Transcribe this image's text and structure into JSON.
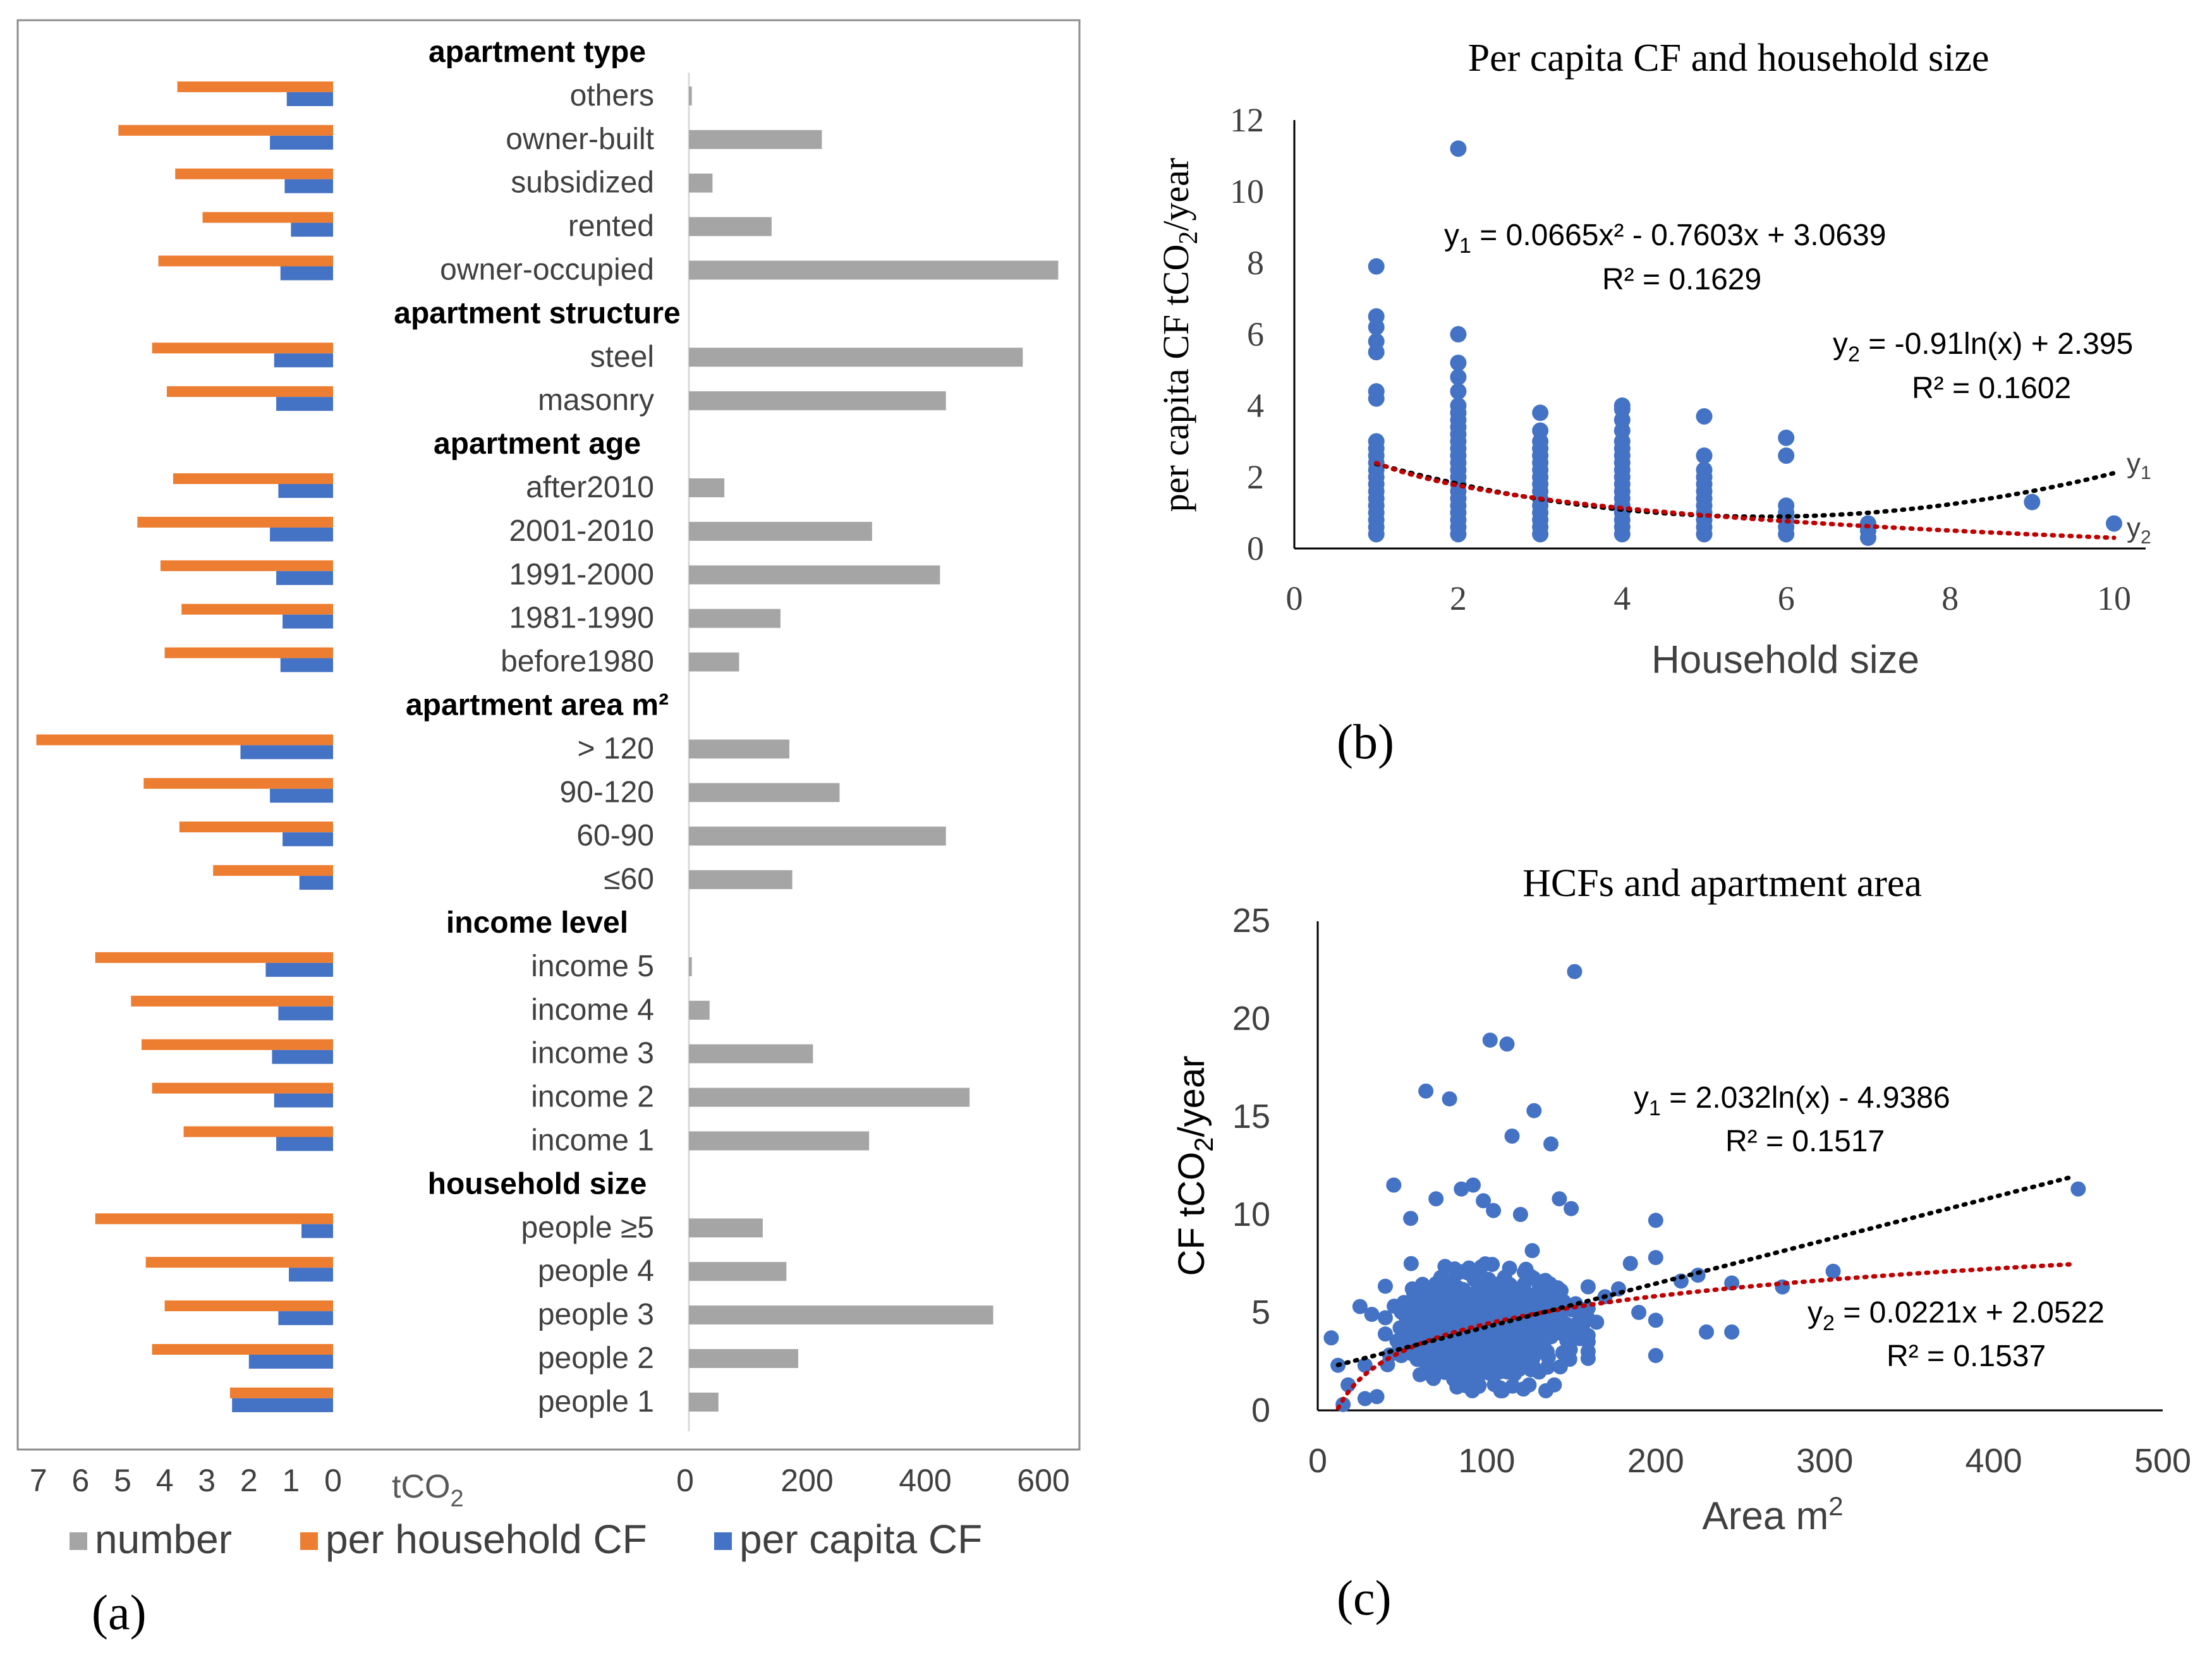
{
  "chart_data": [
    {
      "id": "a",
      "type": "bar",
      "panel_label": "(a)",
      "left_axis": {
        "unit_label": "tCO",
        "unit_sub": "2",
        "ticks": [
          "7",
          "6",
          "5",
          "4",
          "3",
          "2",
          "1",
          "0"
        ],
        "range": [
          0,
          7
        ]
      },
      "right_axis": {
        "ticks": [
          "0",
          "200",
          "400",
          "600"
        ],
        "range": [
          0,
          600
        ]
      },
      "legend": [
        {
          "name": "number",
          "color": "#a5a5a5"
        },
        {
          "name": "per household CF",
          "color": "#ed7d31"
        },
        {
          "name": "per capita CF",
          "color": "#4472c4"
        }
      ],
      "groups": [
        {
          "heading": "apartment type",
          "rows": [
            {
              "label": "others",
              "household": 3.7,
              "capita": 1.1,
              "number": 5
            },
            {
              "label": "owner-built",
              "household": 5.1,
              "capita": 1.5,
              "number": 225
            },
            {
              "label": "subsidized",
              "household": 3.75,
              "capita": 1.15,
              "number": 40
            },
            {
              "label": "rented",
              "household": 3.1,
              "capita": 1.0,
              "number": 140
            },
            {
              "label": "owner-occupied",
              "household": 4.15,
              "capita": 1.25,
              "number": 625
            }
          ]
        },
        {
          "heading": "apartment structure",
          "rows": [
            {
              "label": "steel",
              "household": 4.3,
              "capita": 1.4,
              "number": 565
            },
            {
              "label": "masonry",
              "household": 3.95,
              "capita": 1.35,
              "number": 435
            }
          ]
        },
        {
          "heading": "apartment age",
          "rows": [
            {
              "label": "after2010",
              "household": 3.8,
              "capita": 1.3,
              "number": 60
            },
            {
              "label": "2001-2010",
              "household": 4.65,
              "capita": 1.5,
              "number": 310
            },
            {
              "label": "1991-2000",
              "household": 4.1,
              "capita": 1.35,
              "number": 425
            },
            {
              "label": "1981-1990",
              "household": 3.6,
              "capita": 1.2,
              "number": 155
            },
            {
              "label": "before1980",
              "household": 4.0,
              "capita": 1.25,
              "number": 85
            }
          ]
        },
        {
          "heading": "apartment area m²",
          "rows": [
            {
              "label": "> 120",
              "household": 7.05,
              "capita": 2.2,
              "number": 170
            },
            {
              "label": "90-120",
              "household": 4.5,
              "capita": 1.5,
              "number": 255
            },
            {
              "label": "60-90",
              "household": 3.65,
              "capita": 1.2,
              "number": 435
            },
            {
              "label": "≤60",
              "household": 2.85,
              "capita": 0.8,
              "number": 175
            }
          ]
        },
        {
          "heading": "income level",
          "rows": [
            {
              "label": "income 5",
              "household": 5.65,
              "capita": 1.6,
              "number": 5
            },
            {
              "label": "income 4",
              "household": 4.8,
              "capita": 1.3,
              "number": 35
            },
            {
              "label": "income 3",
              "household": 4.55,
              "capita": 1.45,
              "number": 210
            },
            {
              "label": "income 2",
              "household": 4.3,
              "capita": 1.4,
              "number": 475
            },
            {
              "label": "income 1",
              "household": 3.55,
              "capita": 1.35,
              "number": 305
            }
          ]
        },
        {
          "heading": "household size",
          "rows": [
            {
              "label": "people ≥5",
              "household": 5.65,
              "capita": 0.75,
              "number": 125
            },
            {
              "label": "people 4",
              "household": 4.45,
              "capita": 1.05,
              "number": 165
            },
            {
              "label": "people 3",
              "household": 4.0,
              "capita": 1.3,
              "number": 515
            },
            {
              "label": "people 2",
              "household": 4.3,
              "capita": 2.0,
              "number": 185
            },
            {
              "label": "people 1",
              "household": 2.45,
              "capita": 2.4,
              "number": 50
            }
          ]
        }
      ]
    },
    {
      "id": "b",
      "type": "scatter",
      "panel_label": "(b)",
      "title": "Per capita CF and household size",
      "xlabel": "Household size",
      "ylabel_main": "per capita CF tCO",
      "ylabel_sub": "2",
      "ylabel_end": "/year",
      "xlim": [
        0,
        10
      ],
      "ylim": [
        0,
        12
      ],
      "xticks": [
        "0",
        "2",
        "4",
        "6",
        "8",
        "10"
      ],
      "yticks": [
        "0",
        "2",
        "4",
        "6",
        "8",
        "10",
        "12"
      ],
      "equations": [
        {
          "main": "y",
          "sub": "1",
          "rest": " = 0.0665x² - 0.7603x + 3.0639",
          "r2": "R² = 0.1629"
        },
        {
          "main": "y",
          "sub": "2",
          "rest": " = -0.91ln(x) + 2.395",
          "r2": "R² = 0.1602"
        }
      ],
      "curve_tags": [
        {
          "main": "y",
          "sub": "1"
        },
        {
          "main": "y",
          "sub": "2"
        }
      ],
      "fits": [
        {
          "name": "y1",
          "kind": "poly2",
          "a": 0.0665,
          "b": -0.7603,
          "c": 3.0639,
          "color": "#000000",
          "x_from": 1,
          "x_to": 10
        },
        {
          "name": "y2",
          "kind": "log",
          "a": -0.91,
          "b": 2.395,
          "color": "#c00000",
          "x_from": 1,
          "x_to": 10
        }
      ],
      "columns": [
        {
          "x": 1,
          "values": [
            0.4,
            0.6,
            0.8,
            1.0,
            1.2,
            1.4,
            1.6,
            1.8,
            2.0,
            2.2,
            2.4,
            2.6,
            2.8,
            3.0,
            4.2,
            4.4,
            5.5,
            5.8,
            6.2,
            6.5,
            7.9
          ]
        },
        {
          "x": 2,
          "values": [
            0.4,
            0.6,
            0.8,
            1.0,
            1.2,
            1.4,
            1.6,
            1.8,
            2.0,
            2.2,
            2.4,
            2.6,
            2.8,
            3.0,
            3.2,
            3.4,
            3.6,
            3.8,
            4.0,
            4.4,
            4.8,
            5.2,
            6.0,
            11.2
          ]
        },
        {
          "x": 3,
          "values": [
            0.4,
            0.6,
            0.8,
            1.0,
            1.2,
            1.4,
            1.6,
            1.8,
            2.0,
            2.2,
            2.4,
            2.6,
            2.8,
            3.0,
            3.3,
            3.8
          ]
        },
        {
          "x": 4,
          "values": [
            0.4,
            0.6,
            0.8,
            1.0,
            1.2,
            1.4,
            1.6,
            1.8,
            2.0,
            2.2,
            2.4,
            2.6,
            2.8,
            3.0,
            3.3,
            3.6,
            3.9,
            4.0
          ]
        },
        {
          "x": 5,
          "values": [
            0.4,
            0.6,
            0.8,
            1.0,
            1.2,
            1.4,
            1.6,
            1.8,
            2.0,
            2.2,
            2.6,
            3.7
          ]
        },
        {
          "x": 6,
          "values": [
            0.4,
            0.6,
            0.8,
            1.0,
            1.2,
            2.6,
            3.1
          ]
        },
        {
          "x": 7,
          "values": [
            0.3,
            0.5,
            0.7
          ]
        },
        {
          "x": 9,
          "values": [
            1.3
          ]
        },
        {
          "x": 10,
          "values": [
            0.7
          ]
        }
      ]
    },
    {
      "id": "c",
      "type": "scatter",
      "panel_label": "(c)",
      "title": "HCFs and apartment area",
      "xlabel_main": "Area m",
      "xlabel_sup": "2",
      "ylabel_main": "CF  tCO",
      "ylabel_sub": "2",
      "ylabel_end": "/year",
      "xlim": [
        0,
        500
      ],
      "ylim": [
        0,
        25
      ],
      "xticks": [
        "0",
        "100",
        "200",
        "300",
        "400",
        "500"
      ],
      "yticks": [
        "0",
        "5",
        "10",
        "15",
        "20",
        "25"
      ],
      "equations": [
        {
          "main": "y",
          "sub": "1",
          "rest": " = 2.032ln(x) - 4.9386",
          "r2": "R² = 0.1517"
        },
        {
          "main": "y",
          "sub": "2",
          "rest": " = 0.0221x + 2.0522",
          "r2": "R² = 0.1537"
        }
      ],
      "fits": [
        {
          "name": "y1",
          "kind": "log",
          "a": 2.032,
          "b": -4.9386,
          "color": "#c00000",
          "x_from": 12,
          "x_to": 450
        },
        {
          "name": "y2",
          "kind": "linear",
          "a": 0.0221,
          "b": 2.0522,
          "color": "#000000",
          "x_from": 12,
          "x_to": 450
        }
      ],
      "outliers": [
        [
          152,
          22.4
        ],
        [
          102,
          18.9
        ],
        [
          112,
          18.7
        ],
        [
          64,
          16.3
        ],
        [
          78,
          15.9
        ],
        [
          128,
          15.3
        ],
        [
          115,
          14.0
        ],
        [
          138,
          13.6
        ],
        [
          45,
          11.5
        ],
        [
          92,
          11.5
        ],
        [
          85,
          11.3
        ],
        [
          70,
          10.8
        ],
        [
          98,
          10.7
        ],
        [
          104,
          10.2
        ],
        [
          55,
          9.8
        ],
        [
          120,
          10.0
        ],
        [
          200,
          9.7
        ],
        [
          150,
          10.3
        ],
        [
          143,
          10.8
        ],
        [
          450,
          11.3
        ],
        [
          305,
          7.1
        ],
        [
          275,
          6.3
        ],
        [
          245,
          6.5
        ],
        [
          230,
          4.0
        ],
        [
          245,
          4.0
        ],
        [
          200,
          2.8
        ],
        [
          200,
          4.6
        ],
        [
          215,
          6.6
        ],
        [
          8,
          3.7
        ],
        [
          12,
          2.3
        ],
        [
          28,
          2.3
        ],
        [
          25,
          5.3
        ],
        [
          32,
          4.9
        ],
        [
          18,
          1.3
        ],
        [
          15,
          0.3
        ],
        [
          35,
          0.7
        ],
        [
          28,
          0.6
        ],
        [
          135,
          1.0
        ],
        [
          140,
          1.3
        ],
        [
          170,
          5.8
        ],
        [
          185,
          7.5
        ],
        [
          178,
          6.2
        ],
        [
          165,
          4.5
        ],
        [
          160,
          3.5
        ],
        [
          200,
          7.8
        ],
        [
          190,
          5.0
        ],
        [
          225,
          6.9
        ]
      ],
      "cluster": {
        "x_min": 40,
        "x_max": 160,
        "y_min": 1.0,
        "y_max": 9.0,
        "x_center": 100,
        "y_center": 4.3,
        "count": 620,
        "seed": 7
      }
    }
  ]
}
